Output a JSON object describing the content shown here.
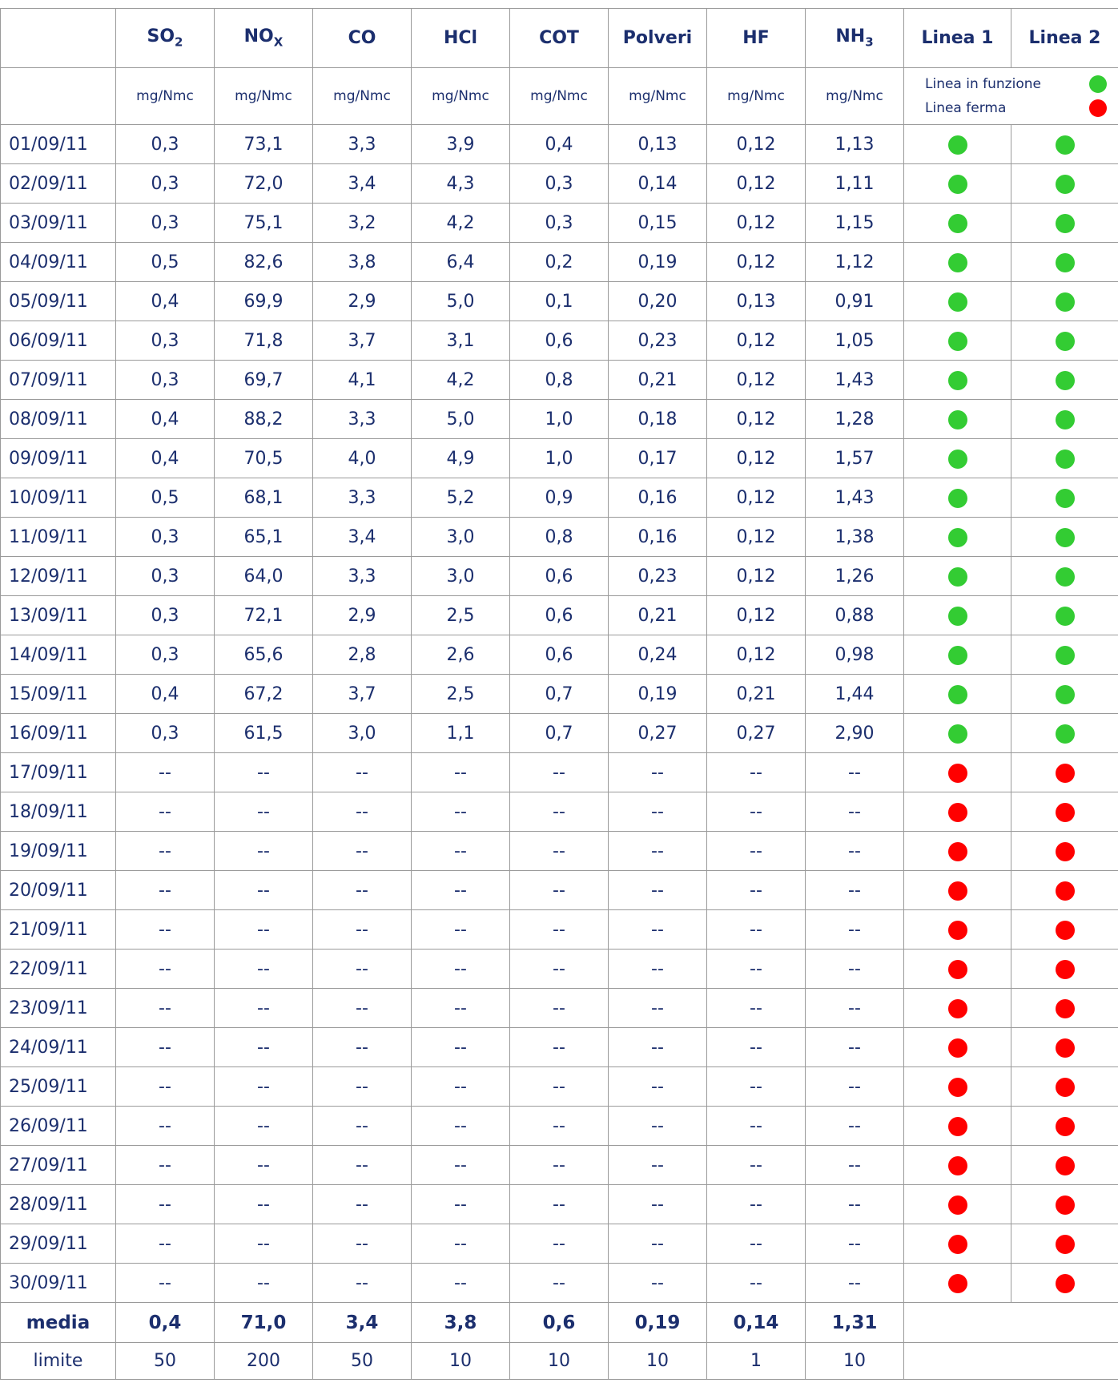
{
  "table": {
    "columns": [
      {
        "name": "SO",
        "sub": "2"
      },
      {
        "name": "NO",
        "sub": "X"
      },
      {
        "name": "CO"
      },
      {
        "name": "HCl"
      },
      {
        "name": "COT"
      },
      {
        "name": "Polveri"
      },
      {
        "name": "HF"
      },
      {
        "name": "NH",
        "sub": "3"
      }
    ],
    "lines": [
      "Linea 1",
      "Linea 2"
    ],
    "units": [
      "mg/Nmc",
      "mg/Nmc",
      "mg/Nmc",
      "mg/Nmc",
      "mg/Nmc",
      "mg/Nmc",
      "mg/Nmc",
      "mg/Nmc"
    ],
    "legend": [
      {
        "label": "Linea in funzione",
        "color": "#33cc33"
      },
      {
        "label": "Linea ferma",
        "color": "#ff0000"
      }
    ],
    "rows": [
      {
        "date": "01/09/11",
        "values": [
          "0,3",
          "73,1",
          "3,3",
          "3,9",
          "0,4",
          "0,13",
          "0,12",
          "1,13"
        ],
        "status": [
          "#33cc33",
          "#33cc33"
        ]
      },
      {
        "date": "02/09/11",
        "values": [
          "0,3",
          "72,0",
          "3,4",
          "4,3",
          "0,3",
          "0,14",
          "0,12",
          "1,11"
        ],
        "status": [
          "#33cc33",
          "#33cc33"
        ]
      },
      {
        "date": "03/09/11",
        "values": [
          "0,3",
          "75,1",
          "3,2",
          "4,2",
          "0,3",
          "0,15",
          "0,12",
          "1,15"
        ],
        "status": [
          "#33cc33",
          "#33cc33"
        ]
      },
      {
        "date": "04/09/11",
        "values": [
          "0,5",
          "82,6",
          "3,8",
          "6,4",
          "0,2",
          "0,19",
          "0,12",
          "1,12"
        ],
        "status": [
          "#33cc33",
          "#33cc33"
        ]
      },
      {
        "date": "05/09/11",
        "values": [
          "0,4",
          "69,9",
          "2,9",
          "5,0",
          "0,1",
          "0,20",
          "0,13",
          "0,91"
        ],
        "status": [
          "#33cc33",
          "#33cc33"
        ]
      },
      {
        "date": "06/09/11",
        "values": [
          "0,3",
          "71,8",
          "3,7",
          "3,1",
          "0,6",
          "0,23",
          "0,12",
          "1,05"
        ],
        "status": [
          "#33cc33",
          "#33cc33"
        ]
      },
      {
        "date": "07/09/11",
        "values": [
          "0,3",
          "69,7",
          "4,1",
          "4,2",
          "0,8",
          "0,21",
          "0,12",
          "1,43"
        ],
        "status": [
          "#33cc33",
          "#33cc33"
        ]
      },
      {
        "date": "08/09/11",
        "values": [
          "0,4",
          "88,2",
          "3,3",
          "5,0",
          "1,0",
          "0,18",
          "0,12",
          "1,28"
        ],
        "status": [
          "#33cc33",
          "#33cc33"
        ]
      },
      {
        "date": "09/09/11",
        "values": [
          "0,4",
          "70,5",
          "4,0",
          "4,9",
          "1,0",
          "0,17",
          "0,12",
          "1,57"
        ],
        "status": [
          "#33cc33",
          "#33cc33"
        ]
      },
      {
        "date": "10/09/11",
        "values": [
          "0,5",
          "68,1",
          "3,3",
          "5,2",
          "0,9",
          "0,16",
          "0,12",
          "1,43"
        ],
        "status": [
          "#33cc33",
          "#33cc33"
        ]
      },
      {
        "date": "11/09/11",
        "values": [
          "0,3",
          "65,1",
          "3,4",
          "3,0",
          "0,8",
          "0,16",
          "0,12",
          "1,38"
        ],
        "status": [
          "#33cc33",
          "#33cc33"
        ]
      },
      {
        "date": "12/09/11",
        "values": [
          "0,3",
          "64,0",
          "3,3",
          "3,0",
          "0,6",
          "0,23",
          "0,12",
          "1,26"
        ],
        "status": [
          "#33cc33",
          "#33cc33"
        ]
      },
      {
        "date": "13/09/11",
        "values": [
          "0,3",
          "72,1",
          "2,9",
          "2,5",
          "0,6",
          "0,21",
          "0,12",
          "0,88"
        ],
        "status": [
          "#33cc33",
          "#33cc33"
        ]
      },
      {
        "date": "14/09/11",
        "values": [
          "0,3",
          "65,6",
          "2,8",
          "2,6",
          "0,6",
          "0,24",
          "0,12",
          "0,98"
        ],
        "status": [
          "#33cc33",
          "#33cc33"
        ]
      },
      {
        "date": "15/09/11",
        "values": [
          "0,4",
          "67,2",
          "3,7",
          "2,5",
          "0,7",
          "0,19",
          "0,21",
          "1,44"
        ],
        "status": [
          "#33cc33",
          "#33cc33"
        ]
      },
      {
        "date": "16/09/11",
        "values": [
          "0,3",
          "61,5",
          "3,0",
          "1,1",
          "0,7",
          "0,27",
          "0,27",
          "2,90"
        ],
        "status": [
          "#33cc33",
          "#33cc33"
        ]
      },
      {
        "date": "17/09/11",
        "values": [
          "--",
          "--",
          "--",
          "--",
          "--",
          "--",
          "--",
          "--"
        ],
        "status": [
          "#ff0000",
          "#ff0000"
        ]
      },
      {
        "date": "18/09/11",
        "values": [
          "--",
          "--",
          "--",
          "--",
          "--",
          "--",
          "--",
          "--"
        ],
        "status": [
          "#ff0000",
          "#ff0000"
        ]
      },
      {
        "date": "19/09/11",
        "values": [
          "--",
          "--",
          "--",
          "--",
          "--",
          "--",
          "--",
          "--"
        ],
        "status": [
          "#ff0000",
          "#ff0000"
        ]
      },
      {
        "date": "20/09/11",
        "values": [
          "--",
          "--",
          "--",
          "--",
          "--",
          "--",
          "--",
          "--"
        ],
        "status": [
          "#ff0000",
          "#ff0000"
        ]
      },
      {
        "date": "21/09/11",
        "values": [
          "--",
          "--",
          "--",
          "--",
          "--",
          "--",
          "--",
          "--"
        ],
        "status": [
          "#ff0000",
          "#ff0000"
        ]
      },
      {
        "date": "22/09/11",
        "values": [
          "--",
          "--",
          "--",
          "--",
          "--",
          "--",
          "--",
          "--"
        ],
        "status": [
          "#ff0000",
          "#ff0000"
        ]
      },
      {
        "date": "23/09/11",
        "values": [
          "--",
          "--",
          "--",
          "--",
          "--",
          "--",
          "--",
          "--"
        ],
        "status": [
          "#ff0000",
          "#ff0000"
        ]
      },
      {
        "date": "24/09/11",
        "values": [
          "--",
          "--",
          "--",
          "--",
          "--",
          "--",
          "--",
          "--"
        ],
        "status": [
          "#ff0000",
          "#ff0000"
        ]
      },
      {
        "date": "25/09/11",
        "values": [
          "--",
          "--",
          "--",
          "--",
          "--",
          "--",
          "--",
          "--"
        ],
        "status": [
          "#ff0000",
          "#ff0000"
        ]
      },
      {
        "date": "26/09/11",
        "values": [
          "--",
          "--",
          "--",
          "--",
          "--",
          "--",
          "--",
          "--"
        ],
        "status": [
          "#ff0000",
          "#ff0000"
        ]
      },
      {
        "date": "27/09/11",
        "values": [
          "--",
          "--",
          "--",
          "--",
          "--",
          "--",
          "--",
          "--"
        ],
        "status": [
          "#ff0000",
          "#ff0000"
        ]
      },
      {
        "date": "28/09/11",
        "values": [
          "--",
          "--",
          "--",
          "--",
          "--",
          "--",
          "--",
          "--"
        ],
        "status": [
          "#ff0000",
          "#ff0000"
        ]
      },
      {
        "date": "29/09/11",
        "values": [
          "--",
          "--",
          "--",
          "--",
          "--",
          "--",
          "--",
          "--"
        ],
        "status": [
          "#ff0000",
          "#ff0000"
        ]
      },
      {
        "date": "30/09/11",
        "values": [
          "--",
          "--",
          "--",
          "--",
          "--",
          "--",
          "--",
          "--"
        ],
        "status": [
          "#ff0000",
          "#ff0000"
        ]
      }
    ],
    "footer": [
      {
        "label": "media",
        "values": [
          "0,4",
          "71,0",
          "3,4",
          "3,8",
          "0,6",
          "0,19",
          "0,14",
          "1,31"
        ]
      },
      {
        "label": "limite",
        "values": [
          "50",
          "200",
          "50",
          "10",
          "10",
          "10",
          "1",
          "10"
        ]
      }
    ]
  }
}
